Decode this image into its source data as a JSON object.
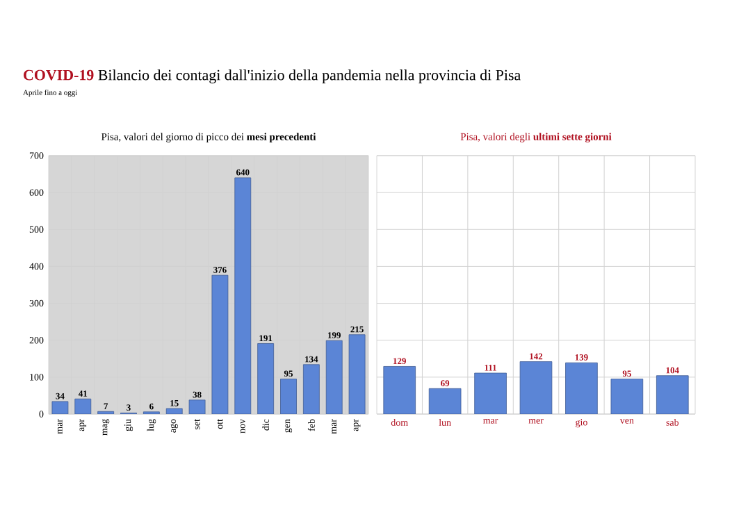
{
  "chart_data": [
    {
      "type": "other",
      "title": "**COVID-19** Bilancio dei contagi dall'inizio della pandemia nella provincia di Pisa",
      "subtitle": "Aprile fino a oggi"
    },
    {
      "type": "bar",
      "title": "Pisa, valori del giorno di picco dei **mesi precedenti**",
      "categories": [
        "mar",
        "apr",
        "mag",
        "giu",
        "lug",
        "ago",
        "set",
        "ott",
        "nov",
        "dic",
        "gen",
        "feb",
        "mar",
        "apr"
      ],
      "values": [
        34,
        41,
        7,
        3,
        6,
        15,
        38,
        376,
        640,
        191,
        95,
        134,
        199,
        215
      ],
      "color": "#5b85d6",
      "ylim": [
        0,
        700
      ],
      "yticks": [
        0,
        100,
        200,
        300,
        400,
        500,
        600,
        700
      ],
      "grid": true,
      "data_labels": true
    },
    {
      "type": "bar",
      "title": "Pisa, valori degli **ultimi sette giorni**",
      "categories": [
        "dom",
        "lun",
        "mar",
        "mer",
        "gio",
        "ven",
        "sab"
      ],
      "values": [
        129,
        69,
        111,
        142,
        139,
        95,
        104
      ],
      "color": "#5b85d6",
      "ylim": [
        0,
        700
      ],
      "yticks": [
        0,
        100,
        200,
        300,
        400,
        500,
        600,
        700
      ],
      "grid": true,
      "data_labels": true,
      "tick_labels": "x"
    }
  ]
}
